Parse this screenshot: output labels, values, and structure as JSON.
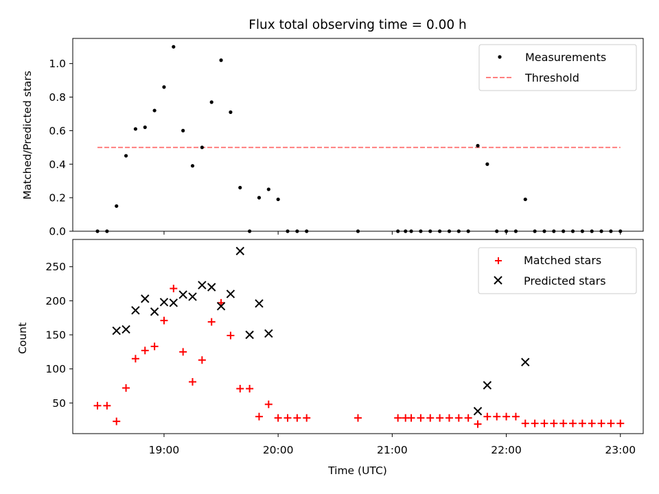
{
  "chart_data": [
    {
      "type": "scatter",
      "title": "Flux total observing time = 0.00 h",
      "xlabel": "",
      "ylabel": "Matched/Predicted stars",
      "xlim": [
        "18:12",
        "23:12"
      ],
      "ylim": [
        0,
        1.15
      ],
      "yticks": [
        0.0,
        0.2,
        0.4,
        0.6,
        0.8,
        1.0
      ],
      "ytick_labels": [
        "0.0",
        "0.2",
        "0.4",
        "0.6",
        "0.8",
        "1.0"
      ],
      "xticks": [
        "19:00",
        "20:00",
        "21:00",
        "22:00",
        "23:00"
      ],
      "xtick_labels_visible": false,
      "grid": false,
      "legend_position": "top-right",
      "legend": [
        "Measurements",
        "Threshold"
      ],
      "series": [
        {
          "name": "Measurements",
          "marker": "dot",
          "color": "#000000",
          "x": [
            "18:25",
            "18:30",
            "18:35",
            "18:40",
            "18:45",
            "18:50",
            "18:55",
            "19:00",
            "19:05",
            "19:10",
            "19:15",
            "19:20",
            "19:25",
            "19:30",
            "19:35",
            "19:40",
            "19:45",
            "19:50",
            "19:55",
            "20:00",
            "20:05",
            "20:10",
            "20:15",
            "20:42",
            "21:03",
            "21:07",
            "21:10",
            "21:15",
            "21:20",
            "21:25",
            "21:30",
            "21:35",
            "21:40",
            "21:45",
            "21:50",
            "21:55",
            "22:00",
            "22:05",
            "22:10",
            "22:15",
            "22:20",
            "22:25",
            "22:30",
            "22:35",
            "22:40",
            "22:45",
            "22:50",
            "22:55",
            "23:00"
          ],
          "y": [
            0,
            0,
            0.15,
            0.45,
            0.61,
            0.62,
            0.72,
            0.86,
            1.1,
            0.6,
            0.39,
            0.5,
            0.77,
            1.02,
            0.71,
            0.26,
            0,
            0.2,
            0.25,
            0.19,
            0,
            0,
            0,
            0,
            0,
            0,
            0,
            0,
            0,
            0,
            0,
            0,
            0,
            0.51,
            0.4,
            0,
            0,
            0,
            0.19,
            0,
            0,
            0,
            0,
            0,
            0,
            0,
            0,
            0,
            0
          ]
        },
        {
          "name": "Threshold",
          "style": "dashed",
          "color": "#ff7f7f",
          "x": [
            "18:25",
            "23:00"
          ],
          "y": [
            0.5,
            0.5
          ]
        }
      ]
    },
    {
      "type": "scatter",
      "title": "",
      "xlabel": "Time (UTC)",
      "ylabel": "Count",
      "xlim": [
        "18:12",
        "23:12"
      ],
      "ylim": [
        5,
        290
      ],
      "yticks": [
        50,
        100,
        150,
        200,
        250
      ],
      "ytick_labels": [
        "50",
        "100",
        "150",
        "200",
        "250"
      ],
      "xticks": [
        "19:00",
        "20:00",
        "21:00",
        "22:00",
        "23:00"
      ],
      "xtick_labels": [
        "19:00",
        "20:00",
        "21:00",
        "22:00",
        "23:00"
      ],
      "grid": false,
      "legend_position": "top-right",
      "legend": [
        "Matched stars",
        "Predicted stars"
      ],
      "series": [
        {
          "name": "Matched stars",
          "marker": "plus",
          "color": "#ff0000",
          "x": [
            "18:25",
            "18:30",
            "18:35",
            "18:40",
            "18:45",
            "18:50",
            "18:55",
            "19:00",
            "19:05",
            "19:10",
            "19:15",
            "19:20",
            "19:25",
            "19:30",
            "19:35",
            "19:40",
            "19:45",
            "19:50",
            "19:55",
            "20:00",
            "20:05",
            "20:10",
            "20:15",
            "20:42",
            "21:03",
            "21:07",
            "21:10",
            "21:15",
            "21:20",
            "21:25",
            "21:30",
            "21:35",
            "21:40",
            "21:45",
            "21:50",
            "21:55",
            "22:00",
            "22:05",
            "22:10",
            "22:15",
            "22:20",
            "22:25",
            "22:30",
            "22:35",
            "22:40",
            "22:45",
            "22:50",
            "22:55",
            "23:00"
          ],
          "y": [
            46,
            46,
            23,
            72,
            115,
            127,
            133,
            171,
            218,
            125,
            81,
            113,
            169,
            197,
            149,
            71,
            71,
            30,
            48,
            28,
            28,
            28,
            28,
            28,
            28,
            28,
            28,
            28,
            28,
            28,
            28,
            28,
            28,
            19,
            30,
            30,
            30,
            30,
            20,
            20,
            20,
            20,
            20,
            20,
            20,
            20,
            20,
            20,
            20
          ]
        },
        {
          "name": "Predicted stars",
          "marker": "x",
          "color": "#000000",
          "x": [
            "18:35",
            "18:40",
            "18:45",
            "18:50",
            "18:55",
            "19:00",
            "19:05",
            "19:10",
            "19:15",
            "19:20",
            "19:25",
            "19:30",
            "19:35",
            "19:40",
            "19:45",
            "19:50",
            "19:55",
            "21:45",
            "21:50",
            "22:10"
          ],
          "y": [
            156,
            158,
            186,
            203,
            184,
            198,
            197,
            209,
            206,
            223,
            220,
            192,
            210,
            273,
            150,
            196,
            152,
            38,
            76,
            110
          ]
        }
      ]
    }
  ]
}
